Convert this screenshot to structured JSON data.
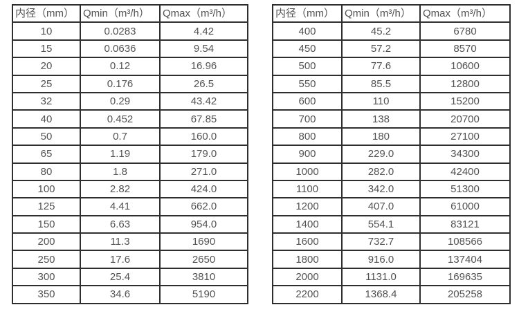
{
  "colors": {
    "border": "#2e2e2e",
    "text": "#525252",
    "background": "#ffffff"
  },
  "chart_data": [
    {
      "type": "table",
      "title": "",
      "headers": [
        "内径（mm）",
        "Qmin（m³/h）",
        "Qmax（m³/h）"
      ],
      "rows": [
        [
          "10",
          "0.0283",
          "4.42"
        ],
        [
          "15",
          "0.0636",
          "9.54"
        ],
        [
          "20",
          "0.12",
          "16.96"
        ],
        [
          "25",
          "0.176",
          "26.5"
        ],
        [
          "32",
          "0.29",
          "43.42"
        ],
        [
          "40",
          "0.452",
          "67.85"
        ],
        [
          "50",
          "0.7",
          "160.0"
        ],
        [
          "65",
          "1.19",
          "179.0"
        ],
        [
          "80",
          "1.8",
          "271.0"
        ],
        [
          "100",
          "2.82",
          "424.0"
        ],
        [
          "125",
          "4.41",
          "662.0"
        ],
        [
          "150",
          "6.63",
          "954.0"
        ],
        [
          "200",
          "11.3",
          "1690"
        ],
        [
          "250",
          "17.6",
          "2650"
        ],
        [
          "300",
          "25.4",
          "3810"
        ],
        [
          "350",
          "34.6",
          "5190"
        ]
      ]
    },
    {
      "type": "table",
      "title": "",
      "headers": [
        "内径（mm）",
        "Qmin（m³/h）",
        "Qmax（m³/h）"
      ],
      "rows": [
        [
          "400",
          "45.2",
          "6780"
        ],
        [
          "450",
          "57.2",
          "8570"
        ],
        [
          "500",
          "77.6",
          "10600"
        ],
        [
          "550",
          "85.5",
          "12800"
        ],
        [
          "600",
          "110",
          "15200"
        ],
        [
          "700",
          "138",
          "20700"
        ],
        [
          "800",
          "180",
          "27100"
        ],
        [
          "900",
          "229.0",
          "34300"
        ],
        [
          "1000",
          "282.0",
          "42400"
        ],
        [
          "1100",
          "342.0",
          "51300"
        ],
        [
          "1200",
          "407.0",
          "61000"
        ],
        [
          "1400",
          "554.1",
          "83121"
        ],
        [
          "1600",
          "732.7",
          "108566"
        ],
        [
          "1800",
          "916.0",
          "137404"
        ],
        [
          "2000",
          "1131.0",
          "169635"
        ],
        [
          "2200",
          "1368.4",
          "205258"
        ]
      ]
    }
  ]
}
